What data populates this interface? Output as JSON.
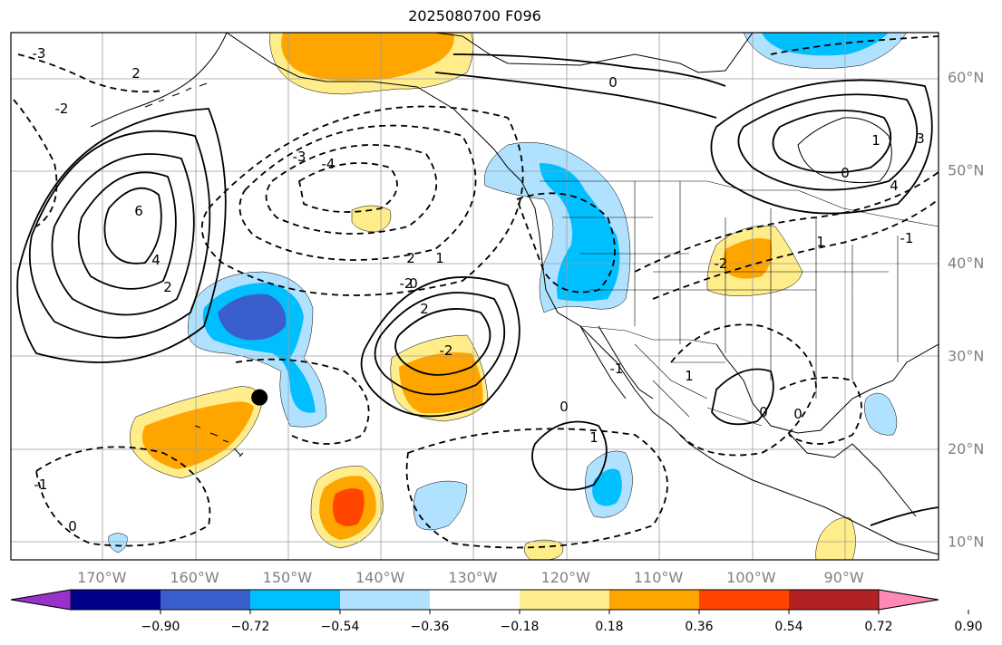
{
  "title": "2025080700 F096",
  "map": {
    "lat_labels": [
      {
        "text": "60°N",
        "lat": 60
      },
      {
        "text": "50°N",
        "lat": 50
      },
      {
        "text": "40°N",
        "lat": 40
      },
      {
        "text": "30°N",
        "lat": 30
      },
      {
        "text": "20°N",
        "lat": 20
      },
      {
        "text": "10°N",
        "lat": 10
      }
    ],
    "lon_labels": [
      {
        "text": "170°W",
        "lon": -170
      },
      {
        "text": "160°W",
        "lon": -160
      },
      {
        "text": "150°W",
        "lon": -150
      },
      {
        "text": "140°W",
        "lon": -140
      },
      {
        "text": "130°W",
        "lon": -130
      },
      {
        "text": "120°W",
        "lon": -120
      },
      {
        "text": "110°W",
        "lon": -110
      },
      {
        "text": "100°W",
        "lon": -100
      },
      {
        "text": "90°W",
        "lon": -90
      }
    ],
    "marker": {
      "lon": -153,
      "lat": 25.5,
      "color": "#000000"
    }
  },
  "colorbar": {
    "colors": [
      "#9932cc",
      "#00008b",
      "#3a5fcd",
      "#00bfff",
      "#b0e2ff",
      "#ffffff",
      "#ffec8b",
      "#ffa500",
      "#ff4500",
      "#b22222",
      "#ff89b4"
    ],
    "labels": [
      "−0.90",
      "−0.72",
      "−0.54",
      "−0.36",
      "−0.18",
      "0.18",
      "0.36",
      "0.54",
      "0.72",
      "0.90"
    ]
  },
  "contour_labels": [
    "-3",
    "2",
    "-2",
    "6",
    "4",
    "2",
    "-3",
    "-4",
    "2",
    "1",
    "-2",
    "0",
    "2",
    "-2",
    "0",
    "1",
    "2",
    "1",
    "0",
    "4",
    "3",
    "-2",
    "-1",
    "1",
    "0",
    "0",
    "-1",
    "1",
    "0",
    "-1",
    "0"
  ]
}
